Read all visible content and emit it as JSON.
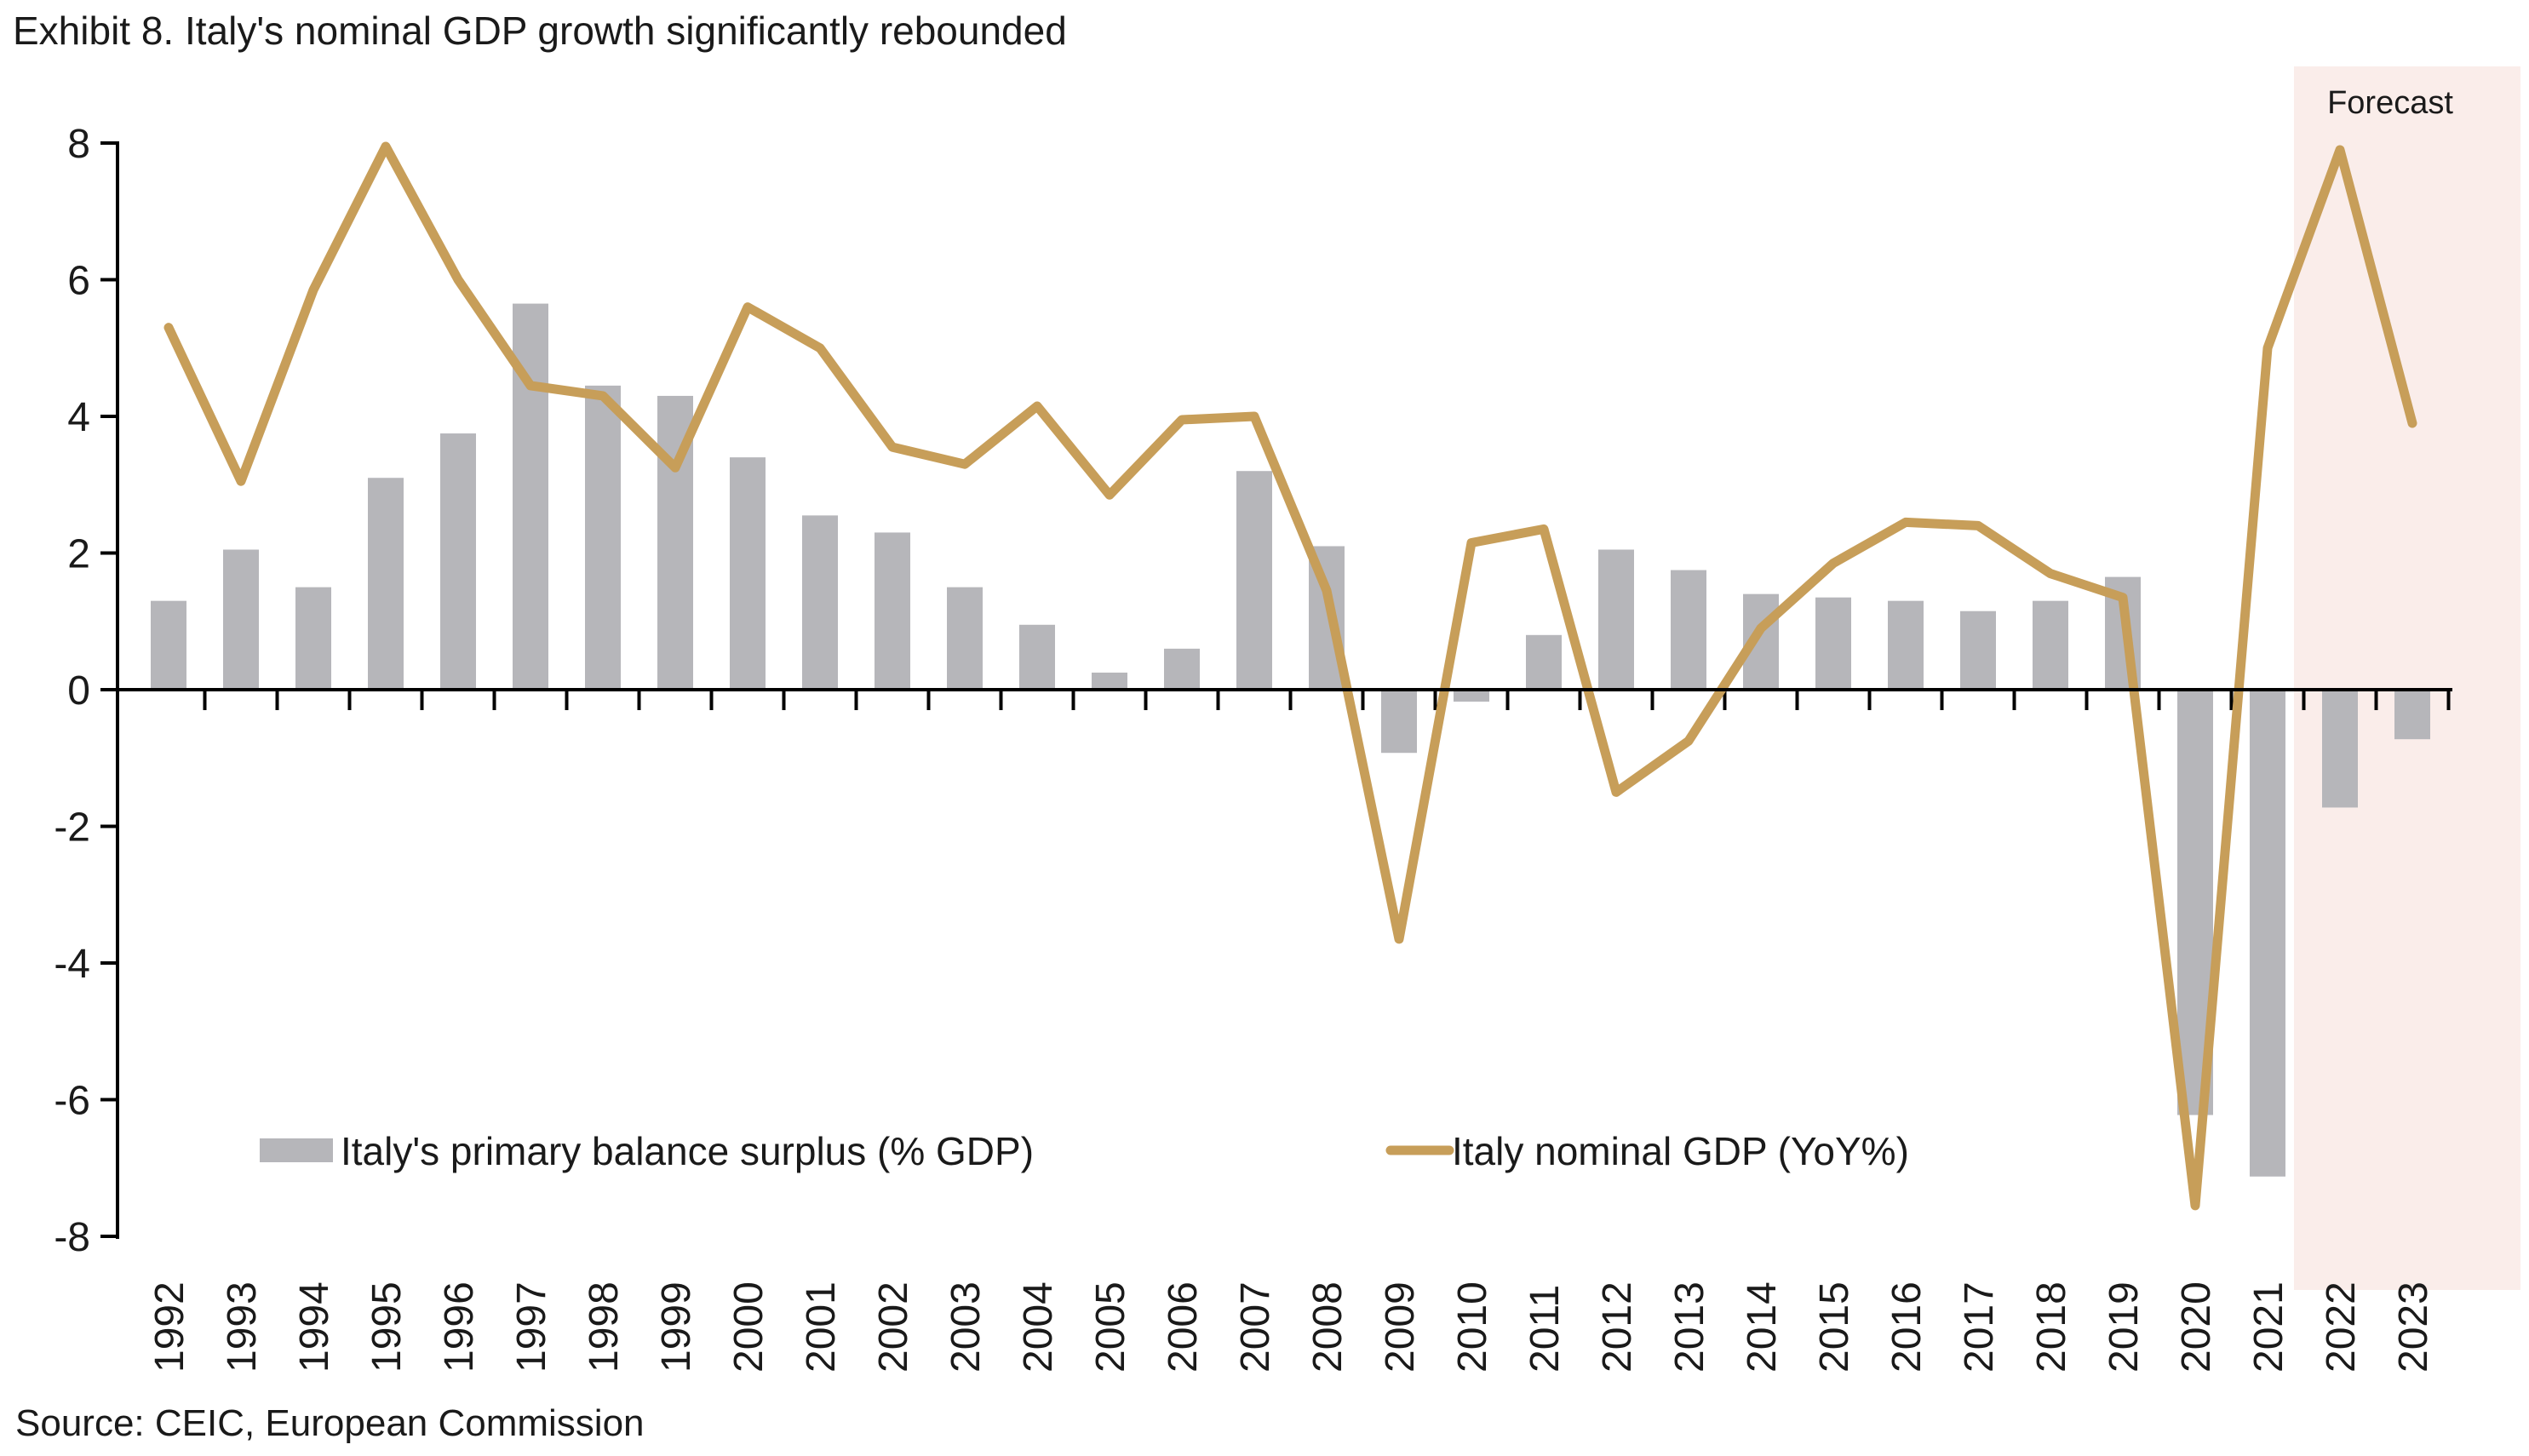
{
  "title": "Exhibit 8. Italy's nominal GDP growth significantly rebounded",
  "source": "Source: CEIC, European Commission",
  "forecast": {
    "label": "Forecast",
    "start_year": "2022",
    "end_year": "2023"
  },
  "colors": {
    "bar": "#b6b6ba",
    "line": "#c79e59",
    "forecast_bg": "#faedea",
    "axis": "#000000",
    "text": "#1a1a1a"
  },
  "legend": {
    "bar_label": "Italy's primary balance surplus (% GDP)",
    "line_label": "Italy nominal GDP (YoY%)"
  },
  "chart_data": {
    "type": "bar",
    "subtype": "bar+line combo",
    "title": "Exhibit 8. Italy's nominal GDP growth significantly rebounded",
    "xlabel": "",
    "ylabel": "",
    "ylim": [
      -8,
      8
    ],
    "y_ticks": [
      8,
      6,
      4,
      2,
      0,
      -2,
      -4,
      -6,
      -8
    ],
    "grid": false,
    "legend_position": "bottom-inside",
    "categories": [
      "1992",
      "1993",
      "1994",
      "1995",
      "1996",
      "1997",
      "1998",
      "1999",
      "2000",
      "2001",
      "2002",
      "2003",
      "2004",
      "2005",
      "2006",
      "2007",
      "2008",
      "2009",
      "2010",
      "2011",
      "2012",
      "2013",
      "2014",
      "2015",
      "2016",
      "2017",
      "2018",
      "2019",
      "2020",
      "2021",
      "2022",
      "2023"
    ],
    "series": [
      {
        "name": "Italy's primary balance surplus (% GDP)",
        "type": "bar",
        "values": [
          1.3,
          2.05,
          1.5,
          3.1,
          3.75,
          5.65,
          4.45,
          4.3,
          3.4,
          2.55,
          2.3,
          1.5,
          0.95,
          0.25,
          0.6,
          3.2,
          2.1,
          -0.9,
          -0.15,
          0.8,
          2.05,
          1.75,
          1.4,
          1.35,
          1.3,
          1.15,
          1.3,
          1.65,
          -6.2,
          -7.1,
          -1.7,
          -0.7
        ]
      },
      {
        "name": "Italy nominal GDP (YoY%)",
        "type": "line",
        "values": [
          5.3,
          3.05,
          5.85,
          7.95,
          6.0,
          4.45,
          4.3,
          3.25,
          5.6,
          5.0,
          3.55,
          3.3,
          4.15,
          2.85,
          3.95,
          4.0,
          1.45,
          -3.65,
          2.15,
          2.35,
          -1.5,
          -0.75,
          0.9,
          1.85,
          2.45,
          2.4,
          1.7,
          1.35,
          -7.55,
          5.0,
          7.9,
          3.9
        ]
      }
    ],
    "annotations": [
      "Forecast region shading covers 2022 and 2023"
    ]
  }
}
